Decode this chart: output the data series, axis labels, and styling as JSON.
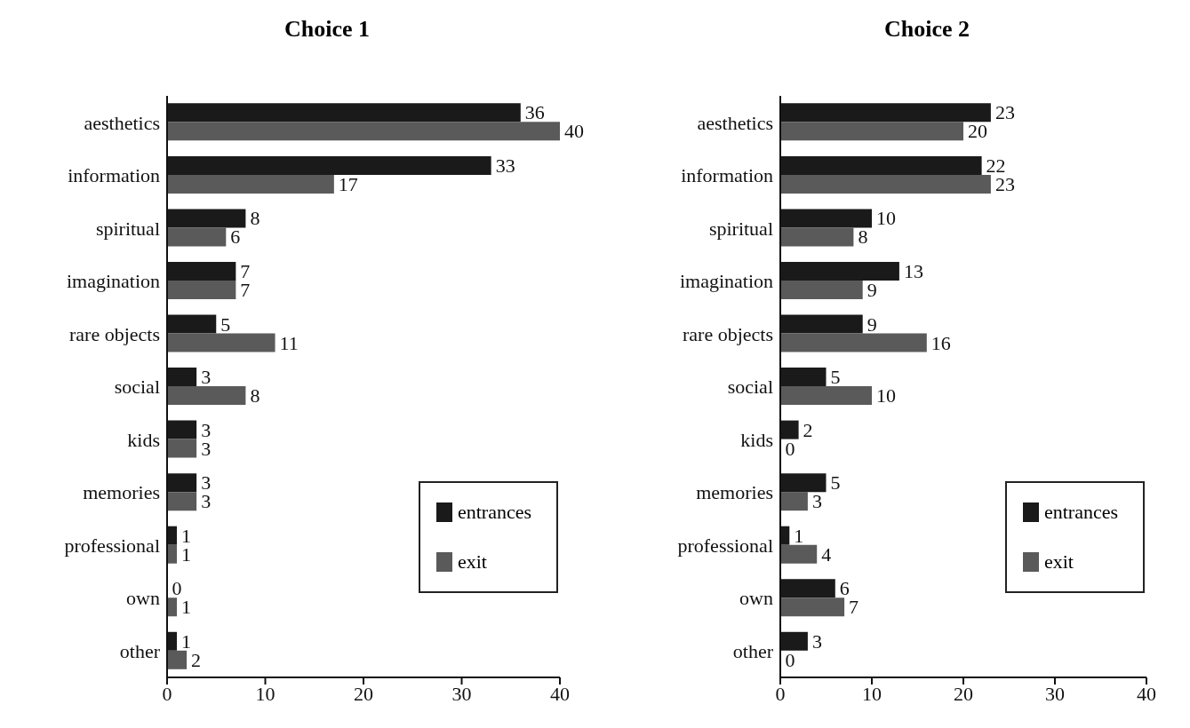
{
  "chart_data": [
    {
      "type": "bar",
      "title": "Choice 1",
      "orientation": "horizontal",
      "categories": [
        "aesthetics",
        "information",
        "spiritual",
        "imagination",
        "rare objects",
        "social",
        "kids",
        "memories",
        "professional",
        "own",
        "other"
      ],
      "series": [
        {
          "name": "entrances",
          "color": "#1a1a1a",
          "values": [
            36,
            33,
            8,
            7,
            5,
            3,
            3,
            3,
            1,
            0,
            1
          ]
        },
        {
          "name": "exit",
          "color": "#5a5a5a",
          "values": [
            40,
            17,
            6,
            7,
            11,
            8,
            3,
            3,
            1,
            1,
            2
          ]
        }
      ],
      "xlim": [
        0,
        40
      ],
      "xticks": [
        0,
        10,
        20,
        30,
        40
      ],
      "data_labels": true,
      "legend": "bottom right",
      "grid": false
    },
    {
      "type": "bar",
      "title": "Choice 2",
      "orientation": "horizontal",
      "categories": [
        "aesthetics",
        "information",
        "spiritual",
        "imagination",
        "rare objects",
        "social",
        "kids",
        "memories",
        "professional",
        "own",
        "other"
      ],
      "series": [
        {
          "name": "entrances",
          "color": "#1a1a1a",
          "values": [
            23,
            22,
            10,
            13,
            9,
            5,
            2,
            5,
            1,
            6,
            3
          ]
        },
        {
          "name": "exit",
          "color": "#5a5a5a",
          "values": [
            20,
            23,
            8,
            9,
            16,
            10,
            0,
            3,
            4,
            7,
            0
          ]
        }
      ],
      "xlim": [
        0,
        40
      ],
      "xticks": [
        0,
        10,
        20,
        30,
        40
      ],
      "data_labels": true,
      "legend": "bottom right",
      "grid": false
    }
  ]
}
